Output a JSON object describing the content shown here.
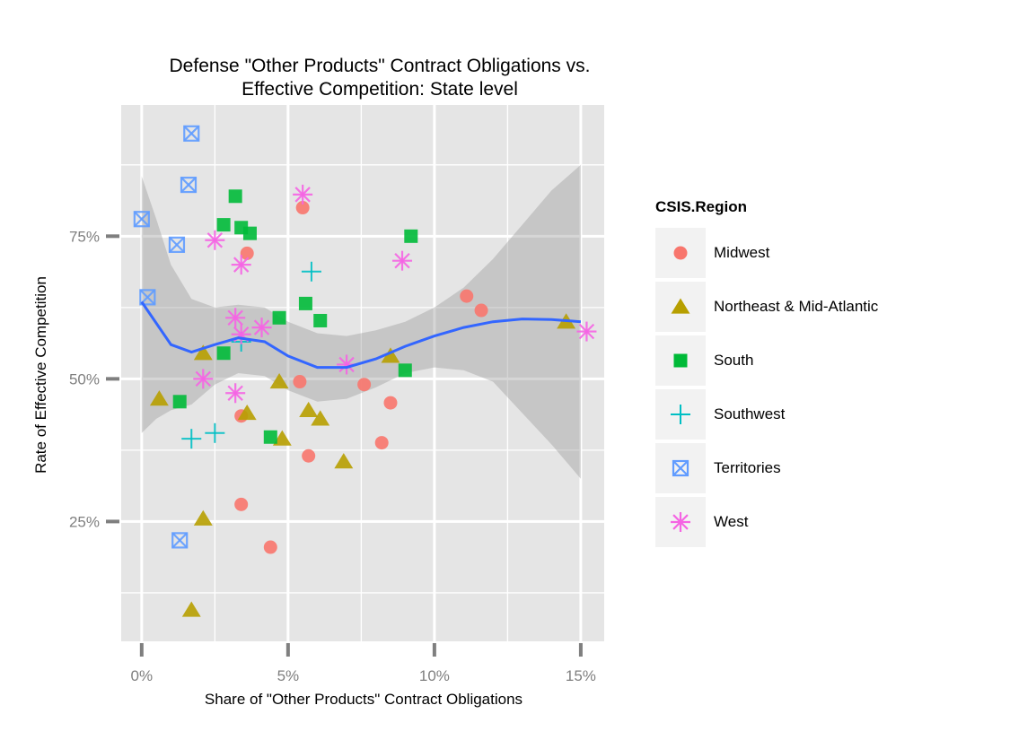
{
  "chart_data": {
    "type": "scatter",
    "title_line1": "Defense \"Other Products\" Contract Obligations vs.",
    "title_line2": "Effective Competition: State level",
    "xlabel": "Share of \"Other Products\" Contract Obligations",
    "ylabel": "Rate of Effective Competition",
    "xlim": [
      -0.007,
      0.158
    ],
    "ylim": [
      0.04,
      0.98
    ],
    "x_ticks": [
      0,
      0.05,
      0.1,
      0.15
    ],
    "x_tick_labels": [
      "0%",
      "5%",
      "10%",
      "15%"
    ],
    "y_ticks": [
      0.25,
      0.5,
      0.75
    ],
    "y_tick_labels": [
      "25%",
      "50%",
      "75%"
    ],
    "grid": true,
    "legend_title": "CSIS.Region",
    "legend_position": "right",
    "series": [
      {
        "name": "Midwest",
        "color": "#F8766D",
        "shape": "circle",
        "points": [
          [
            0.055,
            0.8
          ],
          [
            0.036,
            0.72
          ],
          [
            0.111,
            0.645
          ],
          [
            0.116,
            0.62
          ],
          [
            0.054,
            0.495
          ],
          [
            0.076,
            0.49
          ],
          [
            0.085,
            0.458
          ],
          [
            0.034,
            0.435
          ],
          [
            0.082,
            0.388
          ],
          [
            0.057,
            0.365
          ],
          [
            0.034,
            0.28
          ],
          [
            0.044,
            0.205
          ]
        ]
      },
      {
        "name": "Northeast & Mid-Atlantic",
        "color": "#B79F00",
        "shape": "triangle",
        "points": [
          [
            0.145,
            0.6
          ],
          [
            0.021,
            0.545
          ],
          [
            0.085,
            0.54
          ],
          [
            0.047,
            0.495
          ],
          [
            0.006,
            0.465
          ],
          [
            0.036,
            0.44
          ],
          [
            0.057,
            0.445
          ],
          [
            0.061,
            0.43
          ],
          [
            0.048,
            0.395
          ],
          [
            0.069,
            0.355
          ],
          [
            0.021,
            0.255
          ],
          [
            0.017,
            0.095
          ]
        ]
      },
      {
        "name": "South",
        "color": "#00BA38",
        "shape": "square",
        "points": [
          [
            0.032,
            0.82
          ],
          [
            0.028,
            0.77
          ],
          [
            0.034,
            0.765
          ],
          [
            0.037,
            0.755
          ],
          [
            0.092,
            0.75
          ],
          [
            0.056,
            0.632
          ],
          [
            0.047,
            0.607
          ],
          [
            0.061,
            0.602
          ],
          [
            0.028,
            0.545
          ],
          [
            0.09,
            0.515
          ],
          [
            0.013,
            0.46
          ],
          [
            0.044,
            0.398
          ]
        ]
      },
      {
        "name": "Southwest",
        "color": "#00BFC4",
        "shape": "plus",
        "points": [
          [
            0.058,
            0.688
          ],
          [
            0.034,
            0.565
          ],
          [
            0.025,
            0.405
          ],
          [
            0.017,
            0.395
          ]
        ]
      },
      {
        "name": "Territories",
        "color": "#619CFF",
        "shape": "square-cross",
        "points": [
          [
            0.017,
            0.93
          ],
          [
            0.016,
            0.84
          ],
          [
            0.0,
            0.78
          ],
          [
            0.012,
            0.735
          ],
          [
            0.002,
            0.643
          ],
          [
            0.013,
            0.217
          ]
        ]
      },
      {
        "name": "West",
        "color": "#F564E3",
        "shape": "asterisk",
        "points": [
          [
            0.055,
            0.823
          ],
          [
            0.025,
            0.743
          ],
          [
            0.034,
            0.7
          ],
          [
            0.089,
            0.707
          ],
          [
            0.032,
            0.607
          ],
          [
            0.041,
            0.59
          ],
          [
            0.034,
            0.578
          ],
          [
            0.07,
            0.525
          ],
          [
            0.021,
            0.5
          ],
          [
            0.032,
            0.475
          ],
          [
            0.152,
            0.583
          ]
        ]
      }
    ],
    "smooth": {
      "color": "#3366FF",
      "fit": [
        [
          0.0,
          0.635
        ],
        [
          0.01,
          0.56
        ],
        [
          0.017,
          0.547
        ],
        [
          0.025,
          0.56
        ],
        [
          0.033,
          0.572
        ],
        [
          0.042,
          0.565
        ],
        [
          0.05,
          0.54
        ],
        [
          0.06,
          0.52
        ],
        [
          0.07,
          0.52
        ],
        [
          0.08,
          0.535
        ],
        [
          0.09,
          0.557
        ],
        [
          0.1,
          0.575
        ],
        [
          0.11,
          0.59
        ],
        [
          0.12,
          0.6
        ],
        [
          0.13,
          0.605
        ],
        [
          0.14,
          0.604
        ],
        [
          0.15,
          0.6
        ]
      ],
      "ribbon_upper": [
        [
          0.0,
          0.855
        ],
        [
          0.005,
          0.78
        ],
        [
          0.01,
          0.7
        ],
        [
          0.017,
          0.64
        ],
        [
          0.025,
          0.625
        ],
        [
          0.033,
          0.63
        ],
        [
          0.042,
          0.625
        ],
        [
          0.05,
          0.6
        ],
        [
          0.06,
          0.58
        ],
        [
          0.07,
          0.575
        ],
        [
          0.08,
          0.585
        ],
        [
          0.09,
          0.6
        ],
        [
          0.1,
          0.625
        ],
        [
          0.11,
          0.66
        ],
        [
          0.12,
          0.71
        ],
        [
          0.13,
          0.77
        ],
        [
          0.14,
          0.83
        ],
        [
          0.15,
          0.875
        ]
      ],
      "ribbon_lower": [
        [
          0.0,
          0.405
        ],
        [
          0.005,
          0.43
        ],
        [
          0.01,
          0.445
        ],
        [
          0.017,
          0.455
        ],
        [
          0.025,
          0.49
        ],
        [
          0.033,
          0.51
        ],
        [
          0.042,
          0.505
        ],
        [
          0.05,
          0.48
        ],
        [
          0.06,
          0.46
        ],
        [
          0.07,
          0.465
        ],
        [
          0.08,
          0.485
        ],
        [
          0.09,
          0.51
        ],
        [
          0.1,
          0.52
        ],
        [
          0.11,
          0.515
        ],
        [
          0.12,
          0.495
        ],
        [
          0.13,
          0.44
        ],
        [
          0.14,
          0.385
        ],
        [
          0.15,
          0.325
        ]
      ]
    }
  }
}
